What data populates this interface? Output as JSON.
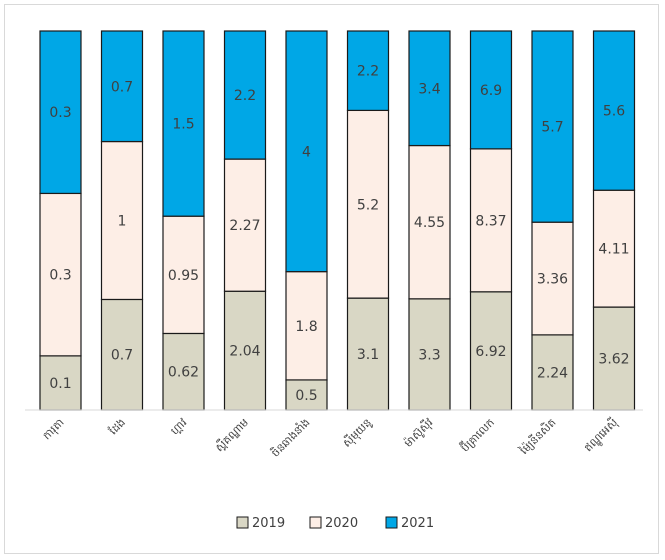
{
  "chart_data": {
    "type": "bar",
    "stacked": true,
    "normalized": true,
    "categories": [
      "ការុតា",
      "ដែង",
      "ហ្គាវ",
      "ស្ពឺគណ្ឌាម",
      "ចិនឆាងនាំង",
      "ស៊ីមុយនូ",
      "ម៉ាស៊ូសុីវ",
      "ប៊ីគ្រាលេក",
      "ម៉្យៃនីនសិត",
      "ឥណ្ឌូអេស៊ី"
    ],
    "series": [
      {
        "name": "2019",
        "values": [
          0.1,
          0.7,
          0.62,
          2.04,
          0.5,
          3.1,
          3.3,
          6.92,
          2.24,
          3.62
        ],
        "color": "#d9d7c5"
      },
      {
        "name": "2020",
        "values": [
          0.3,
          1,
          0.95,
          2.27,
          1.8,
          5.2,
          4.55,
          8.37,
          3.36,
          4.11
        ],
        "color": "#fdeee6"
      },
      {
        "name": "2021",
        "values": [
          0.3,
          0.7,
          1.5,
          2.2,
          4,
          2.2,
          3.4,
          6.9,
          5.7,
          5.6
        ],
        "color": "#00a7e6"
      }
    ],
    "grid": false,
    "legend": "bottom"
  }
}
